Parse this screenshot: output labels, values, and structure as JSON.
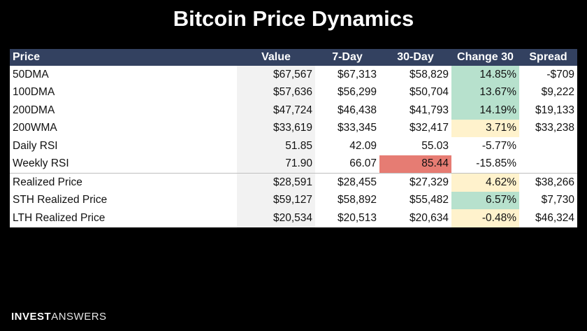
{
  "title": "Bitcoin Price Dynamics",
  "colors": {
    "background": "#000000",
    "header_bg": "#334160",
    "green": "#b7e1cd",
    "yellow": "#fff2cc",
    "red": "#e67c73"
  },
  "table": {
    "headers": [
      "Price",
      "Value",
      "7-Day",
      "30-Day",
      "Change 30",
      "Spread"
    ],
    "rows": [
      {
        "name": "50DMA",
        "value": "$67,567",
        "d7": "$67,313",
        "d30": "$58,829",
        "change": "14.85%",
        "spread": "-$709",
        "change_color": "green",
        "d30_color": ""
      },
      {
        "name": "100DMA",
        "value": "$57,636",
        "d7": "$56,299",
        "d30": "$50,704",
        "change": "13.67%",
        "spread": "$9,222",
        "change_color": "green",
        "d30_color": ""
      },
      {
        "name": "200DMA",
        "value": "$47,724",
        "d7": "$46,438",
        "d30": "$41,793",
        "change": "14.19%",
        "spread": "$19,133",
        "change_color": "green",
        "d30_color": ""
      },
      {
        "name": "200WMA",
        "value": "$33,619",
        "d7": "$33,345",
        "d30": "$32,417",
        "change": "3.71%",
        "spread": "$33,238",
        "change_color": "yellow",
        "d30_color": ""
      },
      {
        "name": "Daily RSI",
        "value": "51.85",
        "d7": "42.09",
        "d30": "55.03",
        "change": "-5.77%",
        "spread": "",
        "change_color": "",
        "d30_color": ""
      },
      {
        "name": "Weekly RSI",
        "value": "71.90",
        "d7": "66.07",
        "d30": "85.44",
        "change": "-15.85%",
        "spread": "",
        "change_color": "",
        "d30_color": "red"
      },
      {
        "name": "Realized Price",
        "value": "$28,591",
        "d7": "$28,455",
        "d30": "$27,329",
        "change": "4.62%",
        "spread": "$38,266",
        "change_color": "yellow",
        "d30_color": ""
      },
      {
        "name": "STH Realized Price",
        "value": "$59,127",
        "d7": "$58,892",
        "d30": "$55,482",
        "change": "6.57%",
        "spread": "$7,730",
        "change_color": "green",
        "d30_color": ""
      },
      {
        "name": "LTH Realized Price",
        "value": "$20,534",
        "d7": "$20,513",
        "d30": "$20,634",
        "change": "-0.48%",
        "spread": "$46,324",
        "change_color": "yellow",
        "d30_color": ""
      }
    ]
  },
  "logo": {
    "bold": "INVEST",
    "light": "ANSWERS"
  }
}
